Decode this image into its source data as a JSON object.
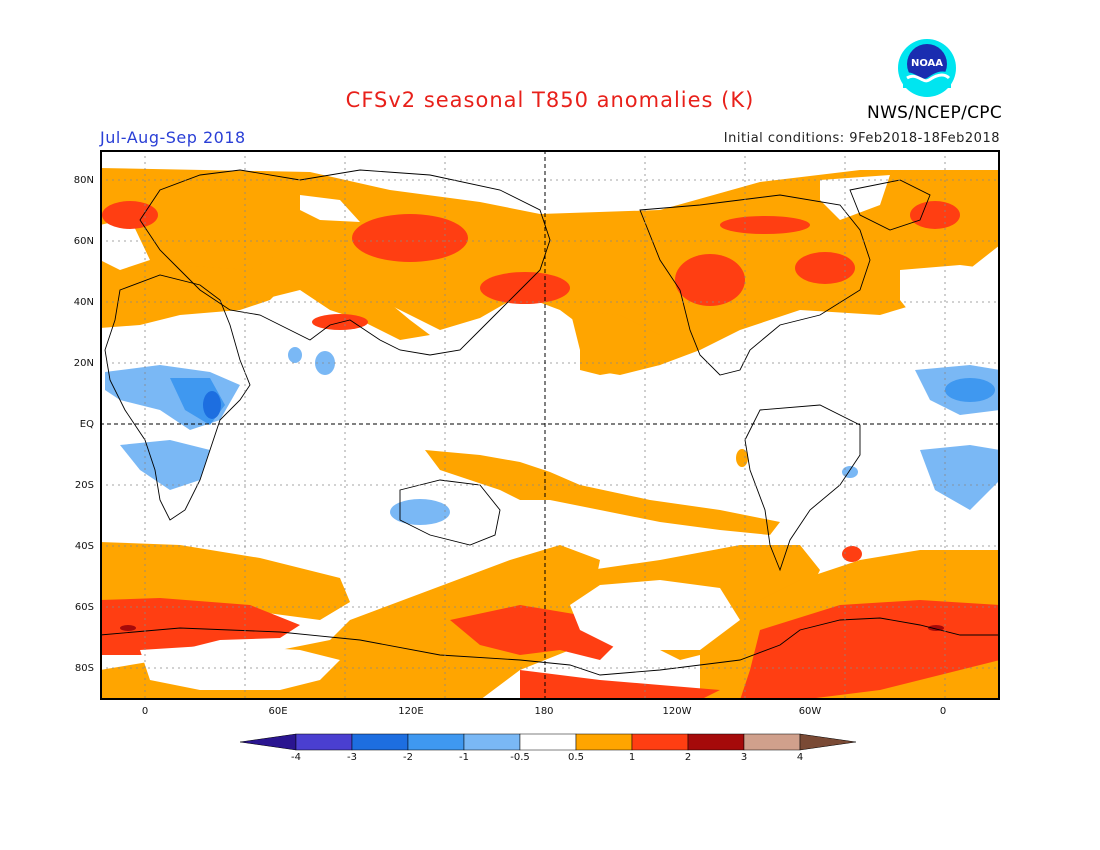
{
  "header": {
    "title": "CFSv2 seasonal T850 anomalies (K)",
    "season": "Jul-Aug-Sep 2018",
    "initial_conditions": "Initial conditions: 9Feb2018-18Feb2018",
    "agency": "NWS/NCEP/CPC",
    "logo_text": "NOAA"
  },
  "axes": {
    "lat_labels": [
      "80N",
      "60N",
      "40N",
      "20N",
      "EQ",
      "20S",
      "40S",
      "60S",
      "80S"
    ],
    "lon_labels": [
      "0",
      "60E",
      "120E",
      "180",
      "120W",
      "60W",
      "0"
    ]
  },
  "colorbar": {
    "labels": [
      "-4",
      "-3",
      "-2",
      "-1",
      "-0.5",
      "0.5",
      "1",
      "2",
      "3",
      "4"
    ],
    "colors": [
      "#2a1590",
      "#4a3fd0",
      "#1d6ee0",
      "#3f98f0",
      "#7ab8f5",
      "#ffffff",
      "#ffa500",
      "#ff3e12",
      "#a50a0a",
      "#d0a08c",
      "#7a4a35"
    ]
  },
  "colors": {
    "title": "#e8201a",
    "season": "#2a3fd6",
    "warm1": "#ffa500",
    "warm2": "#ff3e12",
    "cool1": "#7ab8f5",
    "cool2": "#3f98f0",
    "cool3": "#1d6ee0"
  }
}
